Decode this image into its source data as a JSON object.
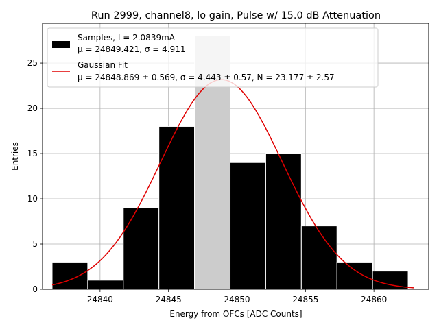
{
  "chart_data": {
    "type": "bar",
    "title": "Run 2999, channel8, lo gain, Pulse w/ 15.0 dB Attenuation",
    "xlabel": "Energy from OFCs [ADC Counts]",
    "ylabel": "Entries",
    "xlim": [
      24835.8,
      24864.0
    ],
    "ylim": [
      0,
      29.4
    ],
    "xticks": [
      24840,
      24845,
      24850,
      24855,
      24860
    ],
    "yticks": [
      0,
      5,
      10,
      15,
      20,
      25
    ],
    "grid": true,
    "legend_position": "upper left",
    "bin_edges": [
      24836.5,
      24839.1,
      24841.7,
      24844.3,
      24846.9,
      24849.5,
      24852.1,
      24854.7,
      24857.3,
      24859.9,
      24862.5
    ],
    "counts": [
      3,
      1,
      9,
      18,
      28,
      14,
      15,
      7,
      3,
      2
    ],
    "bar_color": "#000000",
    "highlight_bin": 4,
    "highlight_color": "#cccccc",
    "series": [
      {
        "name": "Samples, I = 2.0839mA",
        "detail": "μ = 24849.421, σ = 4.911",
        "kind": "histogram"
      },
      {
        "name": "Gaussian Fit",
        "detail": "μ = 24848.869 ± 0.569, σ = 4.443 ± 0.57, N = 23.177 ± 2.57",
        "kind": "line",
        "color": "#e00000",
        "mu": 24848.869,
        "sigma": 4.443,
        "amplitude": 23.177,
        "x_range": [
          24836.5,
          24862.9
        ]
      }
    ]
  }
}
